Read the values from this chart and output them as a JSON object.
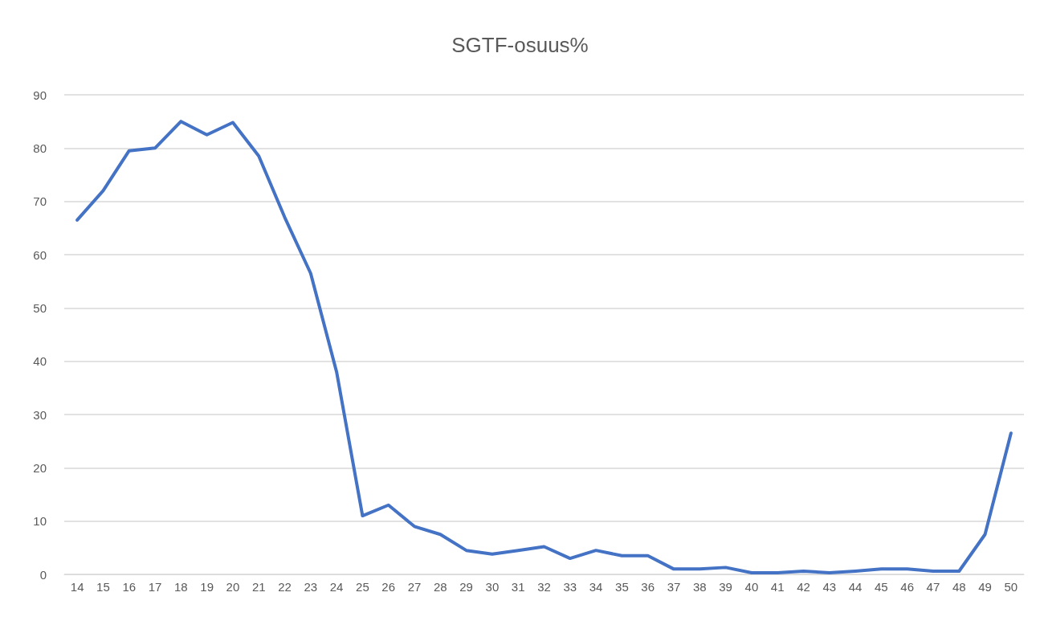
{
  "chart_data": {
    "type": "line",
    "title": "SGTF-osuus%",
    "categories": [
      "14",
      "15",
      "16",
      "17",
      "18",
      "19",
      "20",
      "21",
      "22",
      "23",
      "24",
      "25",
      "26",
      "27",
      "28",
      "29",
      "30",
      "31",
      "32",
      "33",
      "34",
      "35",
      "36",
      "37",
      "38",
      "39",
      "40",
      "41",
      "42",
      "43",
      "44",
      "45",
      "46",
      "47",
      "48",
      "49",
      "50"
    ],
    "series": [
      {
        "color": "#4472c4",
        "values": [
          66.5,
          72,
          79.5,
          80,
          85,
          82.5,
          84.8,
          78.5,
          67,
          56.5,
          38,
          11,
          13,
          9,
          7.5,
          4.5,
          3.8,
          4.5,
          5.2,
          3,
          4.5,
          3.5,
          3.5,
          1,
          1,
          1.3,
          0.3,
          0.3,
          0.6,
          0.3,
          0.6,
          1,
          1,
          0.6,
          0.6,
          7.5,
          26.5
        ]
      }
    ],
    "ylim": [
      0,
      90
    ],
    "yticks": [
      0,
      10,
      20,
      30,
      40,
      50,
      60,
      70,
      80,
      90
    ],
    "grid": "y",
    "marker": "none",
    "line_style": "solid"
  }
}
